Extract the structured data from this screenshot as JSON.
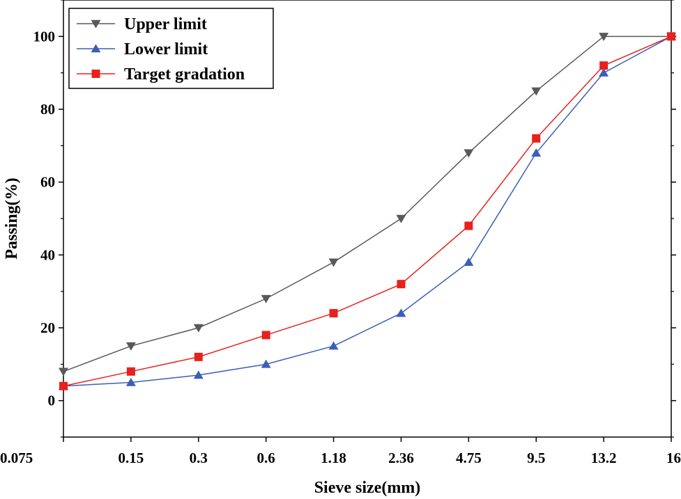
{
  "chart_data": {
    "type": "line",
    "xlabel": "Sieve size(mm)",
    "ylabel": "Passing(%)",
    "categories": [
      "0.075",
      "0.15",
      "0.3",
      "0.6",
      "1.18",
      "2.36",
      "4.75",
      "9.5",
      "13.2",
      "16"
    ],
    "ylim": [
      -10,
      110
    ],
    "yticks": [
      0,
      20,
      40,
      60,
      80,
      100
    ],
    "grid": false,
    "legend_position": "top-left",
    "series": [
      {
        "name": "Upper limit",
        "marker": "triangle-down",
        "color": "#595959",
        "values": [
          8,
          15,
          20,
          28,
          38,
          50,
          68,
          85,
          100,
          100
        ]
      },
      {
        "name": "Lower limit",
        "marker": "triangle-up",
        "color": "#3a5fb5",
        "values": [
          4,
          5,
          7,
          10,
          15,
          24,
          38,
          68,
          90,
          100
        ]
      },
      {
        "name": "Target gradation",
        "marker": "square",
        "color": "#e8211e",
        "values": [
          4,
          8,
          12,
          18,
          24,
          32,
          48,
          72,
          92,
          100
        ]
      }
    ]
  }
}
